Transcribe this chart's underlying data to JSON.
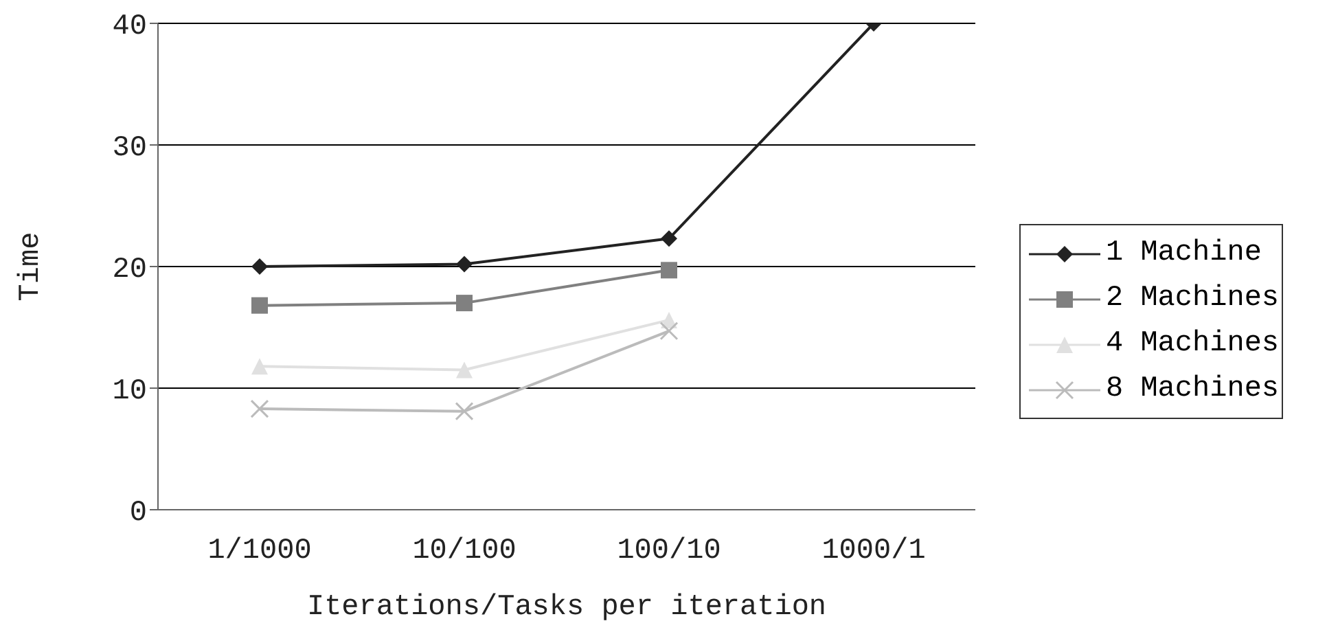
{
  "chart_data": {
    "type": "line",
    "xlabel": "Iterations/Tasks per iteration",
    "ylabel": "Time",
    "categories": [
      "1/1000",
      "10/100",
      "100/10",
      "1000/1"
    ],
    "series": [
      {
        "name": "1 Machine",
        "color": "#222222",
        "marker": "diamond",
        "values": [
          20,
          20.2,
          22.3,
          40
        ]
      },
      {
        "name": "2 Machines",
        "color": "#808080",
        "marker": "square",
        "values": [
          16.8,
          17,
          19.7,
          null
        ]
      },
      {
        "name": "4 Machines",
        "color": "#e0e0e0",
        "marker": "triangle",
        "values": [
          11.8,
          11.5,
          15.6,
          null
        ]
      },
      {
        "name": "8 Machines",
        "color": "#bbbbbb",
        "marker": "cross",
        "values": [
          8.3,
          8.1,
          14.7,
          null
        ]
      }
    ],
    "ylim": [
      0,
      40
    ],
    "yticks": [
      0,
      10,
      20,
      30,
      40
    ],
    "grid": "y",
    "legend": "right",
    "line_style": "solid"
  }
}
